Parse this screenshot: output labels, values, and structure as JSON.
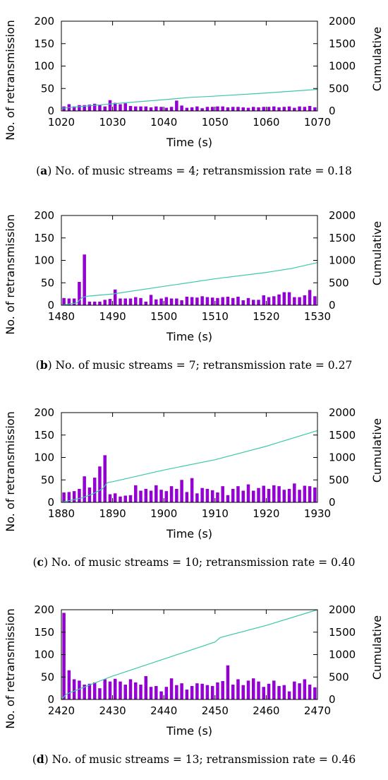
{
  "chart_data": [
    {
      "type": "bar",
      "panel": "a",
      "caption_letter": "a",
      "caption_text": "No. of music streams = 4; retransmission rate = 0.18",
      "xlabel": "Time (s)",
      "ylabel": "No. of retransmission",
      "y2label": "Cumulative",
      "xlim": [
        1020,
        1070
      ],
      "ylim": [
        0,
        200
      ],
      "y2lim": [
        0,
        2000
      ],
      "xticks": [
        "1020",
        "1030",
        "1040",
        "1050",
        "1060",
        "1070"
      ],
      "yticks": [
        "0",
        "50",
        "100",
        "150",
        "200"
      ],
      "y2ticks": [
        "0",
        "500",
        "1000",
        "1500",
        "2000"
      ],
      "bar_color": "#9400d3",
      "line_color": "#3cc8a8",
      "series": [
        {
          "name": "No. of retransmission",
          "kind": "bar",
          "x_start": 1020,
          "step": 1,
          "values": [
            10,
            15,
            10,
            13,
            13,
            14,
            16,
            13,
            10,
            24,
            18,
            15,
            17,
            11,
            10,
            10,
            10,
            8,
            10,
            9,
            7,
            9,
            23,
            12,
            7,
            8,
            10,
            6,
            9,
            9,
            10,
            10,
            8,
            9,
            9,
            8,
            7,
            9,
            8,
            9,
            9,
            10,
            8,
            9,
            10,
            7,
            10,
            9,
            11,
            8
          ]
        },
        {
          "name": "Cumulative",
          "kind": "line",
          "axis": "right",
          "points": [
            [
              1020,
              60
            ],
            [
              1030,
              160
            ],
            [
              1040,
              250
            ],
            [
              1045,
              300
            ],
            [
              1050,
              330
            ],
            [
              1060,
              400
            ],
            [
              1070,
              480
            ]
          ]
        }
      ]
    },
    {
      "type": "bar",
      "panel": "b",
      "caption_letter": "b",
      "caption_text": "No. of music streams = 7; retransmission rate = 0.27",
      "xlabel": "Time (s)",
      "ylabel": "No. of retransmission",
      "y2label": "Cumulative",
      "xlim": [
        1480,
        1530
      ],
      "ylim": [
        0,
        200
      ],
      "y2lim": [
        0,
        2000
      ],
      "xticks": [
        "1480",
        "1490",
        "1500",
        "1510",
        "1520",
        "1530"
      ],
      "yticks": [
        "0",
        "50",
        "100",
        "150",
        "200"
      ],
      "y2ticks": [
        "0",
        "500",
        "1000",
        "1500",
        "2000"
      ],
      "bar_color": "#9400d3",
      "line_color": "#3cc8a8",
      "series": [
        {
          "name": "No. of retransmission",
          "kind": "bar",
          "x_start": 1480,
          "step": 1,
          "values": [
            16,
            15,
            15,
            52,
            113,
            8,
            8,
            8,
            12,
            14,
            35,
            15,
            15,
            15,
            18,
            16,
            8,
            23,
            13,
            15,
            18,
            15,
            15,
            11,
            19,
            18,
            17,
            20,
            18,
            17,
            16,
            18,
            19,
            16,
            19,
            11,
            16,
            12,
            12,
            22,
            18,
            20,
            24,
            29,
            29,
            18,
            18,
            22,
            34,
            20
          ]
        },
        {
          "name": "Cumulative",
          "kind": "line",
          "axis": "right",
          "points": [
            [
              1480,
              0
            ],
            [
              1483,
              50
            ],
            [
              1484,
              170
            ],
            [
              1485,
              200
            ],
            [
              1490,
              250
            ],
            [
              1500,
              420
            ],
            [
              1510,
              590
            ],
            [
              1520,
              730
            ],
            [
              1525,
              820
            ],
            [
              1530,
              950
            ]
          ]
        }
      ]
    },
    {
      "type": "bar",
      "panel": "c",
      "caption_letter": "c",
      "caption_text": "No. of music streams = 10; retransmission rate = 0.40",
      "xlabel": "Time (s)",
      "ylabel": "No. of retransmission",
      "y2label": "Cumulative",
      "xlim": [
        1880,
        1930
      ],
      "ylim": [
        0,
        200
      ],
      "y2lim": [
        0,
        2000
      ],
      "xticks": [
        "1880",
        "1890",
        "1900",
        "1910",
        "1920",
        "1930"
      ],
      "yticks": [
        "0",
        "50",
        "100",
        "150",
        "200"
      ],
      "y2ticks": [
        "0",
        "500",
        "1000",
        "1500",
        "2000"
      ],
      "bar_color": "#9400d3",
      "line_color": "#3cc8a8",
      "series": [
        {
          "name": "No. of retransmission",
          "kind": "bar",
          "x_start": 1880,
          "step": 1,
          "values": [
            22,
            23,
            25,
            30,
            58,
            33,
            55,
            80,
            105,
            18,
            20,
            13,
            15,
            16,
            38,
            26,
            30,
            26,
            38,
            28,
            25,
            36,
            30,
            50,
            23,
            54,
            20,
            32,
            30,
            27,
            22,
            36,
            16,
            30,
            36,
            26,
            40,
            26,
            32,
            37,
            30,
            38,
            36,
            28,
            30,
            42,
            28,
            37,
            36,
            33
          ]
        },
        {
          "name": "Cumulative",
          "kind": "line",
          "axis": "right",
          "points": [
            [
              1880,
              0
            ],
            [
              1884,
              100
            ],
            [
              1886,
              180
            ],
            [
              1888,
              300
            ],
            [
              1889,
              440
            ],
            [
              1890,
              460
            ],
            [
              1900,
              720
            ],
            [
              1910,
              950
            ],
            [
              1920,
              1250
            ],
            [
              1930,
              1600
            ]
          ]
        }
      ]
    },
    {
      "type": "bar",
      "panel": "d",
      "caption_letter": "d",
      "caption_text": "No. of music streams = 13; retransmission rate = 0.46",
      "xlabel": "Time (s)",
      "ylabel": "No. of retransmission",
      "y2label": "Cumulative",
      "xlim": [
        2420,
        2470
      ],
      "ylim": [
        0,
        200
      ],
      "y2lim": [
        0,
        2000
      ],
      "xticks": [
        "2420",
        "2430",
        "2440",
        "2450",
        "2460",
        "2470"
      ],
      "yticks": [
        "0",
        "50",
        "100",
        "150",
        "200"
      ],
      "y2ticks": [
        "0",
        "500",
        "1000",
        "1500",
        "2000"
      ],
      "bar_color": "#9400d3",
      "line_color": "#3cc8a8",
      "series": [
        {
          "name": "No. of retransmission",
          "kind": "bar",
          "x_start": 2420,
          "step": 1,
          "values": [
            193,
            65,
            45,
            42,
            33,
            35,
            38,
            25,
            45,
            40,
            46,
            40,
            33,
            45,
            38,
            33,
            52,
            28,
            30,
            18,
            28,
            47,
            32,
            36,
            22,
            30,
            36,
            35,
            32,
            30,
            38,
            41,
            76,
            33,
            45,
            32,
            42,
            47,
            40,
            28,
            35,
            42,
            30,
            32,
            18,
            40,
            36,
            45,
            33,
            27
          ]
        },
        {
          "name": "Cumulative",
          "kind": "line",
          "axis": "right",
          "points": [
            [
              2420,
              0
            ],
            [
              2421,
              120
            ],
            [
              2425,
              300
            ],
            [
              2430,
              520
            ],
            [
              2440,
              900
            ],
            [
              2450,
              1280
            ],
            [
              2451,
              1380
            ],
            [
              2460,
              1650
            ],
            [
              2470,
              2000
            ]
          ]
        }
      ]
    }
  ]
}
